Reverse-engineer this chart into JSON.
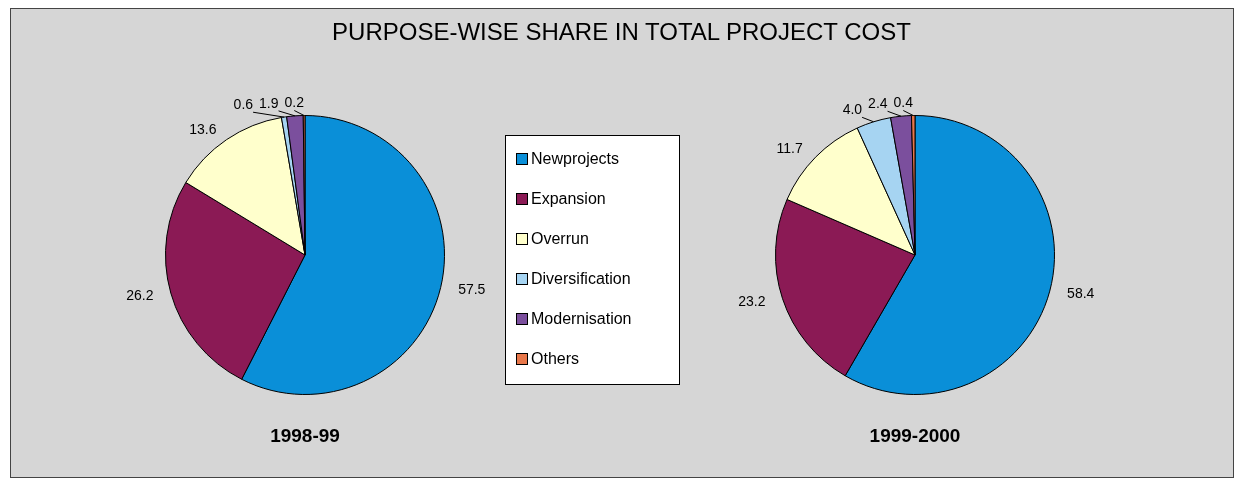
{
  "chart_data": {
    "type": "pie",
    "title": "PURPOSE-WISE SHARE IN TOTAL PROJECT COST",
    "categories": [
      "Newprojects",
      "Expansion",
      "Overrun",
      "Diversification",
      "Modernisation",
      "Others"
    ],
    "colors": [
      "#0a8fd8",
      "#8b1a55",
      "#ffffcc",
      "#a6d4f2",
      "#7b4f9d",
      "#e8774a"
    ],
    "legend": "right",
    "series": [
      {
        "name": "1998-99",
        "values": [
          57.5,
          26.2,
          13.6,
          0.6,
          1.9,
          0.2
        ],
        "value_labels": [
          "57.5",
          "26.2",
          "13.6",
          "0.6",
          "1.9",
          "0.2"
        ]
      },
      {
        "name": "1999-2000",
        "values": [
          58.4,
          23.2,
          11.7,
          4.0,
          2.4,
          0.4
        ],
        "value_labels": [
          "58.4",
          "23.2",
          "11.7",
          "4.0",
          "2.4",
          "0.4"
        ]
      }
    ]
  }
}
